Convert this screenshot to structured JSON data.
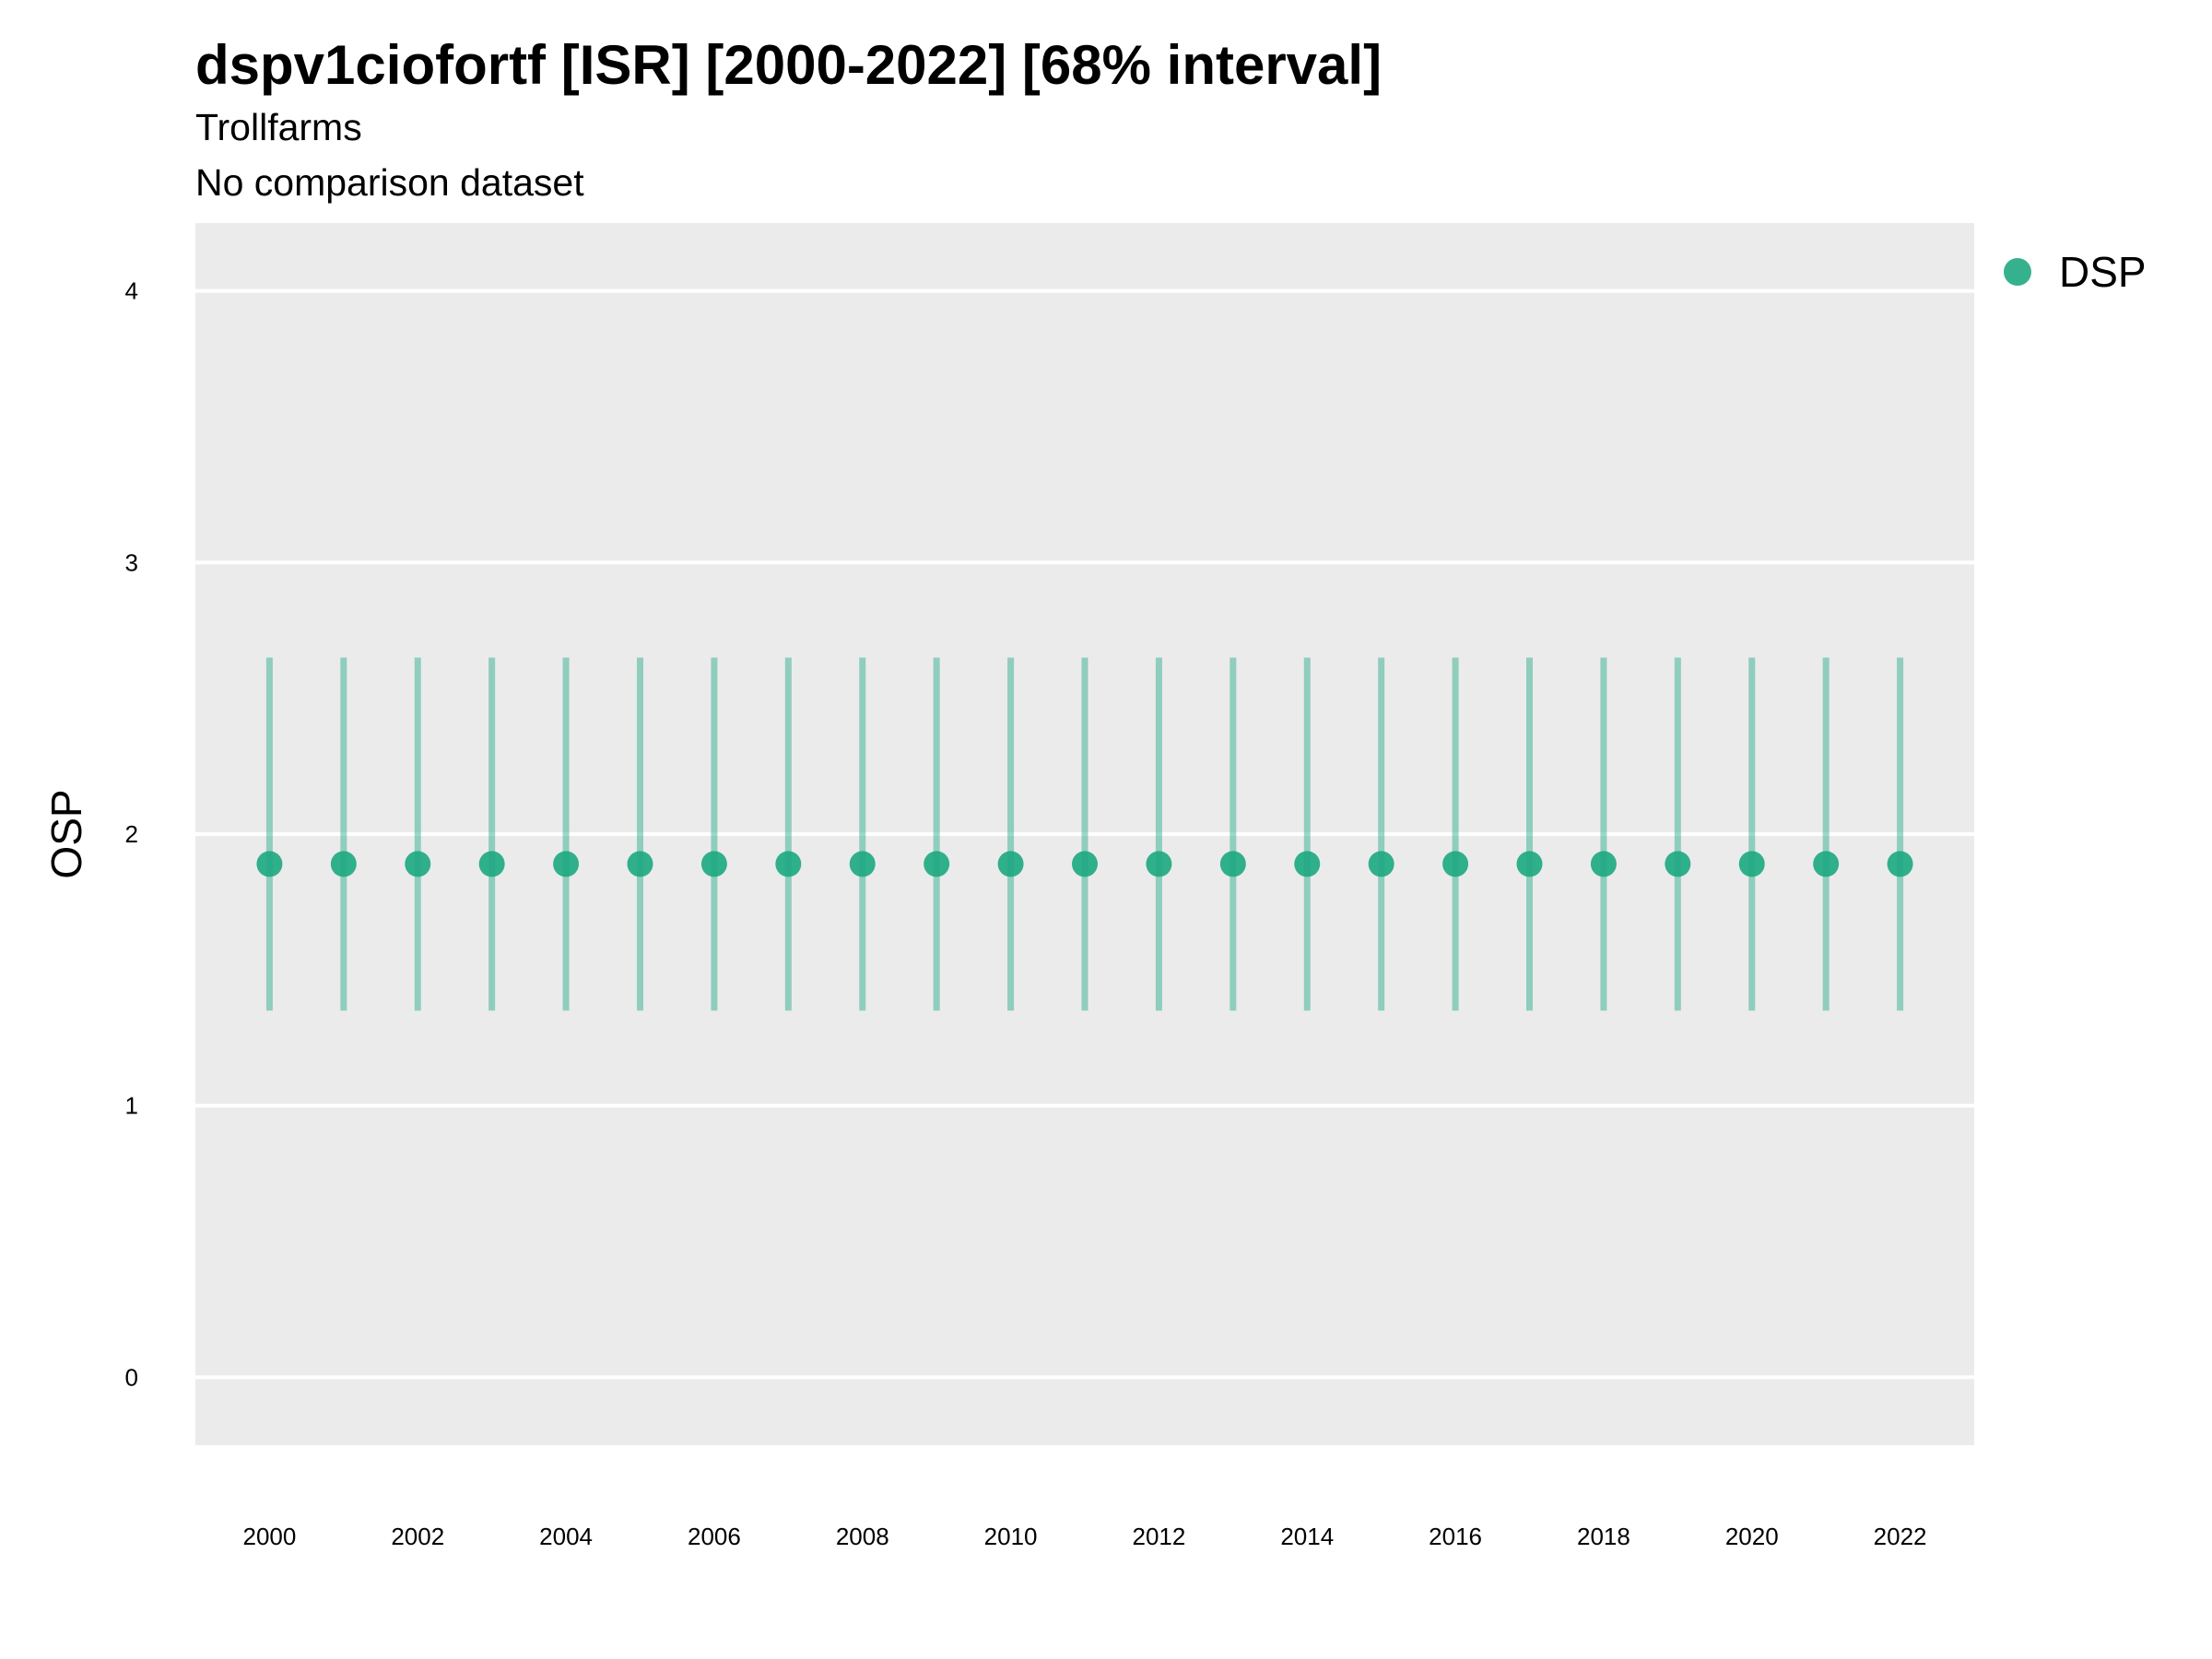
{
  "header": {
    "title": "dspv1ciofortf [ISR] [2000-2022] [68% interval]",
    "subtitle_1": "Trollfarms",
    "subtitle_2": "No comparison dataset"
  },
  "legend": {
    "label": "DSP",
    "color": "#1fa982"
  },
  "chart_data": {
    "type": "scatter",
    "title": "dspv1ciofortf [ISR] [2000-2022] [68% interval]",
    "subtitle": [
      "Trollfarms",
      "No comparison dataset"
    ],
    "xlabel": "",
    "ylabel": "OSP",
    "ylim": [
      -0.25,
      4.25
    ],
    "xlim": [
      1999,
      2023
    ],
    "y_ticks": [
      0,
      1,
      2,
      3,
      4
    ],
    "x_ticks": [
      2000,
      2002,
      2004,
      2006,
      2008,
      2010,
      2012,
      2014,
      2016,
      2018,
      2020,
      2022
    ],
    "grid": true,
    "legend_position": "top-right",
    "series": [
      {
        "name": "DSP",
        "color": "#1fa982",
        "x": [
          2000,
          2001,
          2002,
          2003,
          2004,
          2005,
          2006,
          2007,
          2008,
          2009,
          2010,
          2011,
          2012,
          2013,
          2014,
          2015,
          2016,
          2017,
          2018,
          2019,
          2020,
          2021,
          2022
        ],
        "y": [
          1.89,
          1.89,
          1.89,
          1.89,
          1.89,
          1.89,
          1.89,
          1.89,
          1.89,
          1.89,
          1.89,
          1.89,
          1.89,
          1.89,
          1.89,
          1.89,
          1.89,
          1.89,
          1.89,
          1.89,
          1.89,
          1.89,
          1.89
        ],
        "lower": [
          1.35,
          1.35,
          1.35,
          1.35,
          1.35,
          1.35,
          1.35,
          1.35,
          1.35,
          1.35,
          1.35,
          1.35,
          1.35,
          1.35,
          1.35,
          1.35,
          1.35,
          1.35,
          1.35,
          1.35,
          1.35,
          1.35,
          1.35
        ],
        "upper": [
          2.65,
          2.65,
          2.65,
          2.65,
          2.65,
          2.65,
          2.65,
          2.65,
          2.65,
          2.65,
          2.65,
          2.65,
          2.65,
          2.65,
          2.65,
          2.65,
          2.65,
          2.65,
          2.65,
          2.65,
          2.65,
          2.65,
          2.65
        ]
      }
    ]
  }
}
